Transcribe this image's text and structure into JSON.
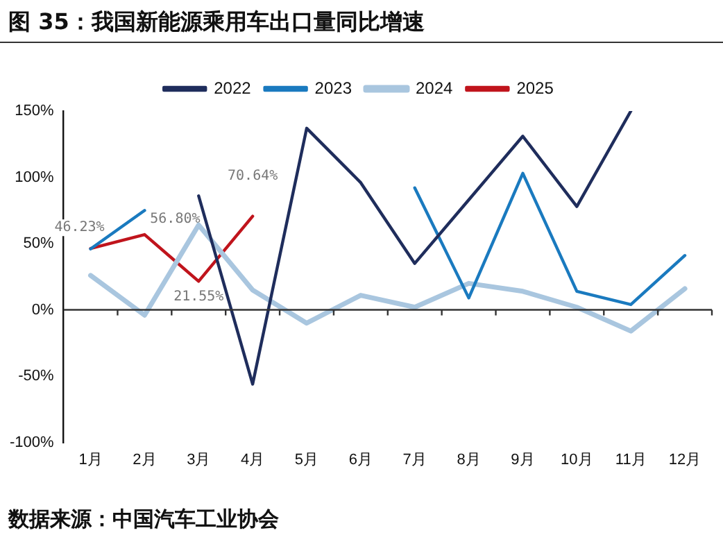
{
  "chart_data": {
    "type": "line",
    "title": "图 35：我国新能源乘用车出口量同比增速",
    "categories": [
      "1月",
      "2月",
      "3月",
      "4月",
      "5月",
      "6月",
      "7月",
      "8月",
      "9月",
      "10月",
      "11月",
      "12月"
    ],
    "series": [
      {
        "name": "2022",
        "color": "#1f2d5c",
        "values": [
          null,
          null,
          86,
          -56,
          137,
          96,
          35,
          83,
          131,
          78,
          150,
          null
        ]
      },
      {
        "name": "2023",
        "color": "#1a7abf",
        "values": [
          46,
          75,
          null,
          null,
          null,
          null,
          92,
          9,
          103,
          14,
          4,
          41
        ]
      },
      {
        "name": "2024",
        "color": "#a9c6df",
        "values": [
          26,
          -4,
          64,
          15,
          -10,
          11,
          2,
          20,
          14,
          2,
          -16,
          16
        ]
      },
      {
        "name": "2025",
        "color": "#c0141c",
        "values": [
          46.23,
          56.8,
          21.55,
          70.64,
          null,
          null,
          null,
          null,
          null,
          null,
          null,
          null
        ],
        "value_labels": [
          "46.23%",
          "56.80%",
          "21.55%",
          "70.64%",
          null,
          null,
          null,
          null,
          null,
          null,
          null,
          null
        ]
      }
    ],
    "ylim": [
      -100,
      150
    ],
    "yticks": [
      {
        "value": -100,
        "label": "-100%"
      },
      {
        "value": -50,
        "label": "-50%"
      },
      {
        "value": 0,
        "label": "0%"
      },
      {
        "value": 50,
        "label": "50%"
      },
      {
        "value": 100,
        "label": "100%"
      },
      {
        "value": 150,
        "label": "150%"
      }
    ],
    "grid": false,
    "legend": "top",
    "marker": "none",
    "ref_lines": [
      {
        "axis": "y",
        "value": 0,
        "color": "#333333"
      }
    ],
    "annotations": [
      "数据来源：中国汽车工业协会"
    ]
  }
}
